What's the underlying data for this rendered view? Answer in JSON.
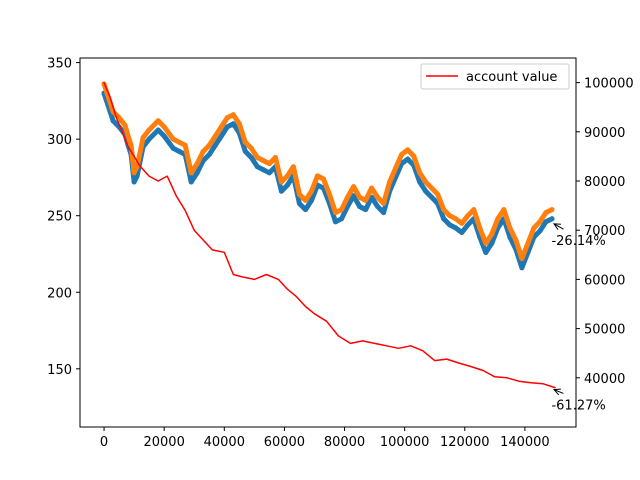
{
  "chart_data": {
    "type": "line",
    "xlim": [
      -8000,
      157000
    ],
    "ylim_left": [
      112,
      353
    ],
    "ylim_right": [
      30000,
      105000
    ],
    "x_ticks": [
      0,
      20000,
      40000,
      60000,
      80000,
      100000,
      120000,
      140000
    ],
    "y_ticks_left": [
      150,
      200,
      250,
      300,
      350
    ],
    "y_ticks_right": [
      40000,
      50000,
      60000,
      70000,
      80000,
      90000,
      100000
    ],
    "legend": {
      "placement": "upper-right",
      "entries": [
        "account value"
      ]
    },
    "grid": false,
    "series": [
      {
        "name": "account value",
        "axis": "right",
        "color": "#ff0000",
        "x": [
          0,
          2000,
          4000,
          6000,
          8000,
          10000,
          12000,
          15000,
          18000,
          21000,
          24000,
          27000,
          30000,
          33000,
          36000,
          40000,
          43000,
          46000,
          50000,
          54000,
          58000,
          61000,
          64000,
          67000,
          70000,
          74000,
          78000,
          82000,
          86000,
          90000,
          94000,
          98000,
          102000,
          106000,
          110000,
          114000,
          118000,
          122000,
          126000,
          130000,
          134000,
          138000,
          142000,
          146000,
          150000
        ],
        "values": [
          100000,
          97000,
          93000,
          90000,
          87000,
          85000,
          83000,
          81000,
          80000,
          81000,
          77000,
          74000,
          70000,
          68000,
          66000,
          65500,
          61000,
          60500,
          60000,
          61000,
          60000,
          58000,
          56500,
          54500,
          53000,
          51500,
          48500,
          47000,
          47500,
          47000,
          46500,
          46000,
          46500,
          45500,
          43500,
          43800,
          43000,
          42300,
          41500,
          40200,
          40000,
          39300,
          39000,
          38800,
          38000
        ]
      },
      {
        "name": "",
        "axis": "left",
        "color": "#1f77b4",
        "x": [
          0,
          2000,
          3000,
          5000,
          7000,
          8000,
          9000,
          10000,
          11000,
          13000,
          15000,
          18000,
          20000,
          23000,
          25000,
          27000,
          29000,
          31000,
          33000,
          35000,
          37000,
          39000,
          41000,
          43000,
          45000,
          47000,
          49000,
          51000,
          53000,
          55000,
          57000,
          59000,
          61000,
          63000,
          65000,
          67000,
          69000,
          71000,
          73000,
          75000,
          77000,
          79000,
          81000,
          83000,
          85000,
          87000,
          89000,
          91000,
          93000,
          95000,
          97000,
          99000,
          101000,
          103000,
          105000,
          107000,
          109000,
          111000,
          113000,
          115000,
          117000,
          119000,
          121000,
          123000,
          125000,
          127000,
          129000,
          131000,
          133000,
          135000,
          137000,
          139000,
          141000,
          143000,
          145000,
          147000,
          149000
        ],
        "values": [
          330,
          318,
          312,
          308,
          303,
          296,
          290,
          272,
          276,
          295,
          300,
          306,
          302,
          294,
          292,
          290,
          272,
          278,
          286,
          290,
          296,
          302,
          308,
          310,
          304,
          292,
          288,
          282,
          280,
          278,
          282,
          266,
          270,
          276,
          258,
          254,
          260,
          270,
          268,
          258,
          246,
          248,
          256,
          263,
          256,
          254,
          262,
          256,
          252,
          266,
          275,
          284,
          287,
          283,
          272,
          266,
          262,
          258,
          248,
          244,
          242,
          239,
          244,
          248,
          236,
          226,
          232,
          242,
          248,
          236,
          228,
          216,
          226,
          236,
          240,
          246,
          248
        ]
      },
      {
        "name": "",
        "axis": "left",
        "color": "#ff7f0e",
        "x": [
          0,
          2000,
          3000,
          5000,
          7000,
          8000,
          9000,
          10000,
          11000,
          13000,
          15000,
          18000,
          20000,
          23000,
          25000,
          27000,
          29000,
          31000,
          33000,
          35000,
          37000,
          39000,
          41000,
          43000,
          45000,
          47000,
          49000,
          51000,
          53000,
          55000,
          57000,
          59000,
          61000,
          63000,
          65000,
          67000,
          69000,
          71000,
          73000,
          75000,
          77000,
          79000,
          81000,
          83000,
          85000,
          87000,
          89000,
          91000,
          93000,
          95000,
          97000,
          99000,
          101000,
          103000,
          105000,
          107000,
          109000,
          111000,
          113000,
          115000,
          117000,
          119000,
          121000,
          123000,
          125000,
          127000,
          129000,
          131000,
          133000,
          135000,
          137000,
          139000,
          141000,
          143000,
          145000,
          147000,
          149000
        ],
        "values": [
          336,
          324,
          318,
          314,
          309,
          302,
          296,
          278,
          282,
          301,
          306,
          312,
          308,
          300,
          298,
          296,
          278,
          284,
          292,
          296,
          302,
          308,
          314,
          316,
          310,
          298,
          294,
          288,
          286,
          284,
          288,
          272,
          276,
          282,
          264,
          260,
          266,
          276,
          274,
          264,
          252,
          254,
          262,
          269,
          262,
          260,
          268,
          262,
          258,
          272,
          281,
          290,
          293,
          289,
          278,
          272,
          268,
          264,
          254,
          250,
          248,
          245,
          250,
          254,
          242,
          232,
          238,
          248,
          254,
          242,
          234,
          222,
          232,
          242,
          246,
          252,
          254
        ]
      }
    ],
    "annotations": [
      {
        "text": "-26.14%",
        "axis": "left",
        "x": 149000,
        "y": 246,
        "text_x": 153500,
        "text_y": 236
      },
      {
        "text": "-61.27%",
        "axis": "right",
        "x": 149000,
        "y": 38000,
        "text_x": 153500,
        "text_y": 35200
      }
    ]
  }
}
